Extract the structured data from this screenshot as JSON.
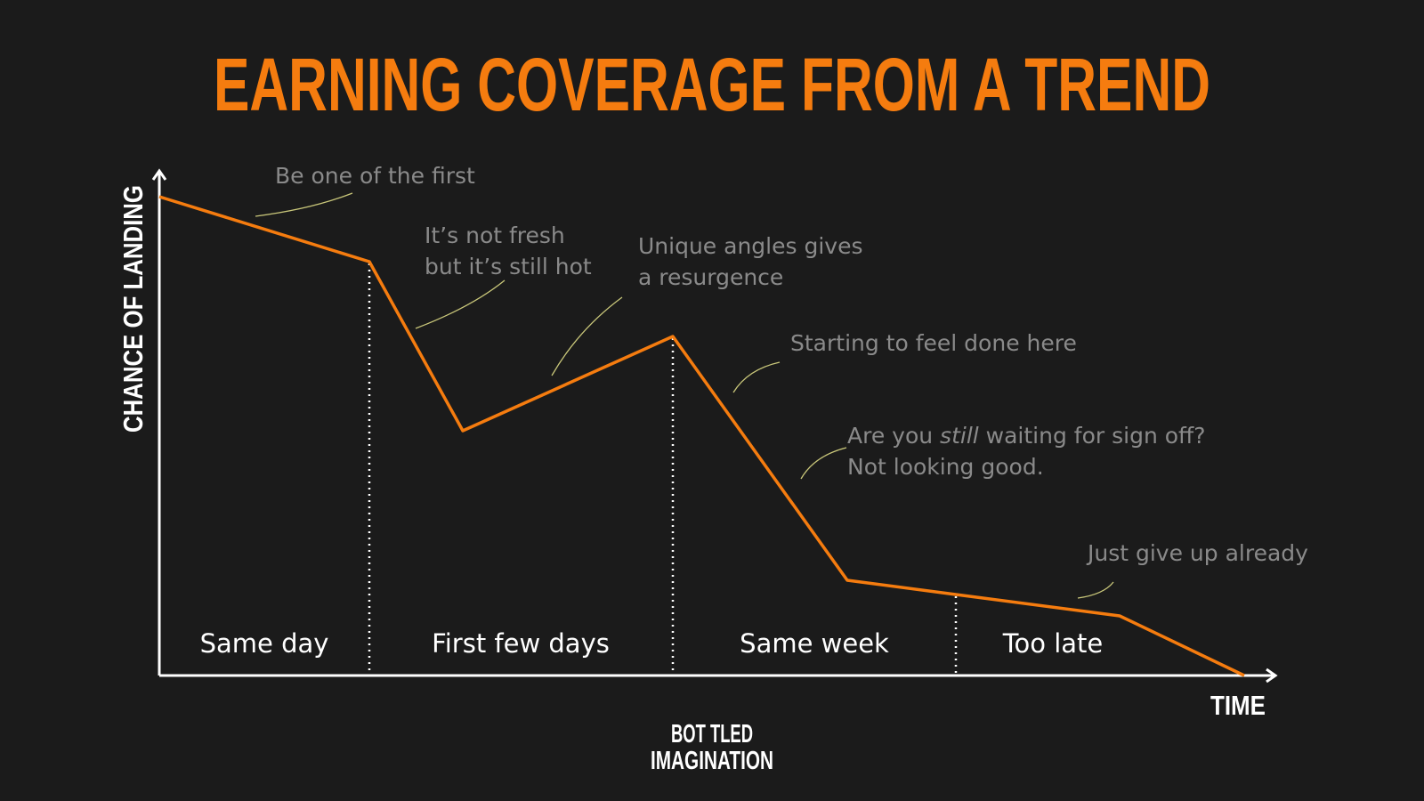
{
  "title": "EARNING COVERAGE FROM A TREND",
  "y_axis_label": "CHANCE OF LANDING",
  "x_axis_label": "TIME",
  "phases": [
    "Same day",
    "First few days",
    "Same week",
    "Too late"
  ],
  "annotations": [
    {
      "lines": [
        "Be one of the first"
      ]
    },
    {
      "lines": [
        "It’s not fresh",
        "but it’s still hot"
      ]
    },
    {
      "lines": [
        "Unique angles gives",
        "a resurgence"
      ]
    },
    {
      "lines": [
        "Starting to feel done here"
      ]
    },
    {
      "before": "Are you ",
      "emphasis": "still",
      "after": " waiting for sign off?",
      "lines": [
        "Not looking good."
      ]
    },
    {
      "lines": [
        "Just give up already"
      ]
    }
  ],
  "logo": [
    "BOT TLED",
    "IMAGINATION"
  ]
}
